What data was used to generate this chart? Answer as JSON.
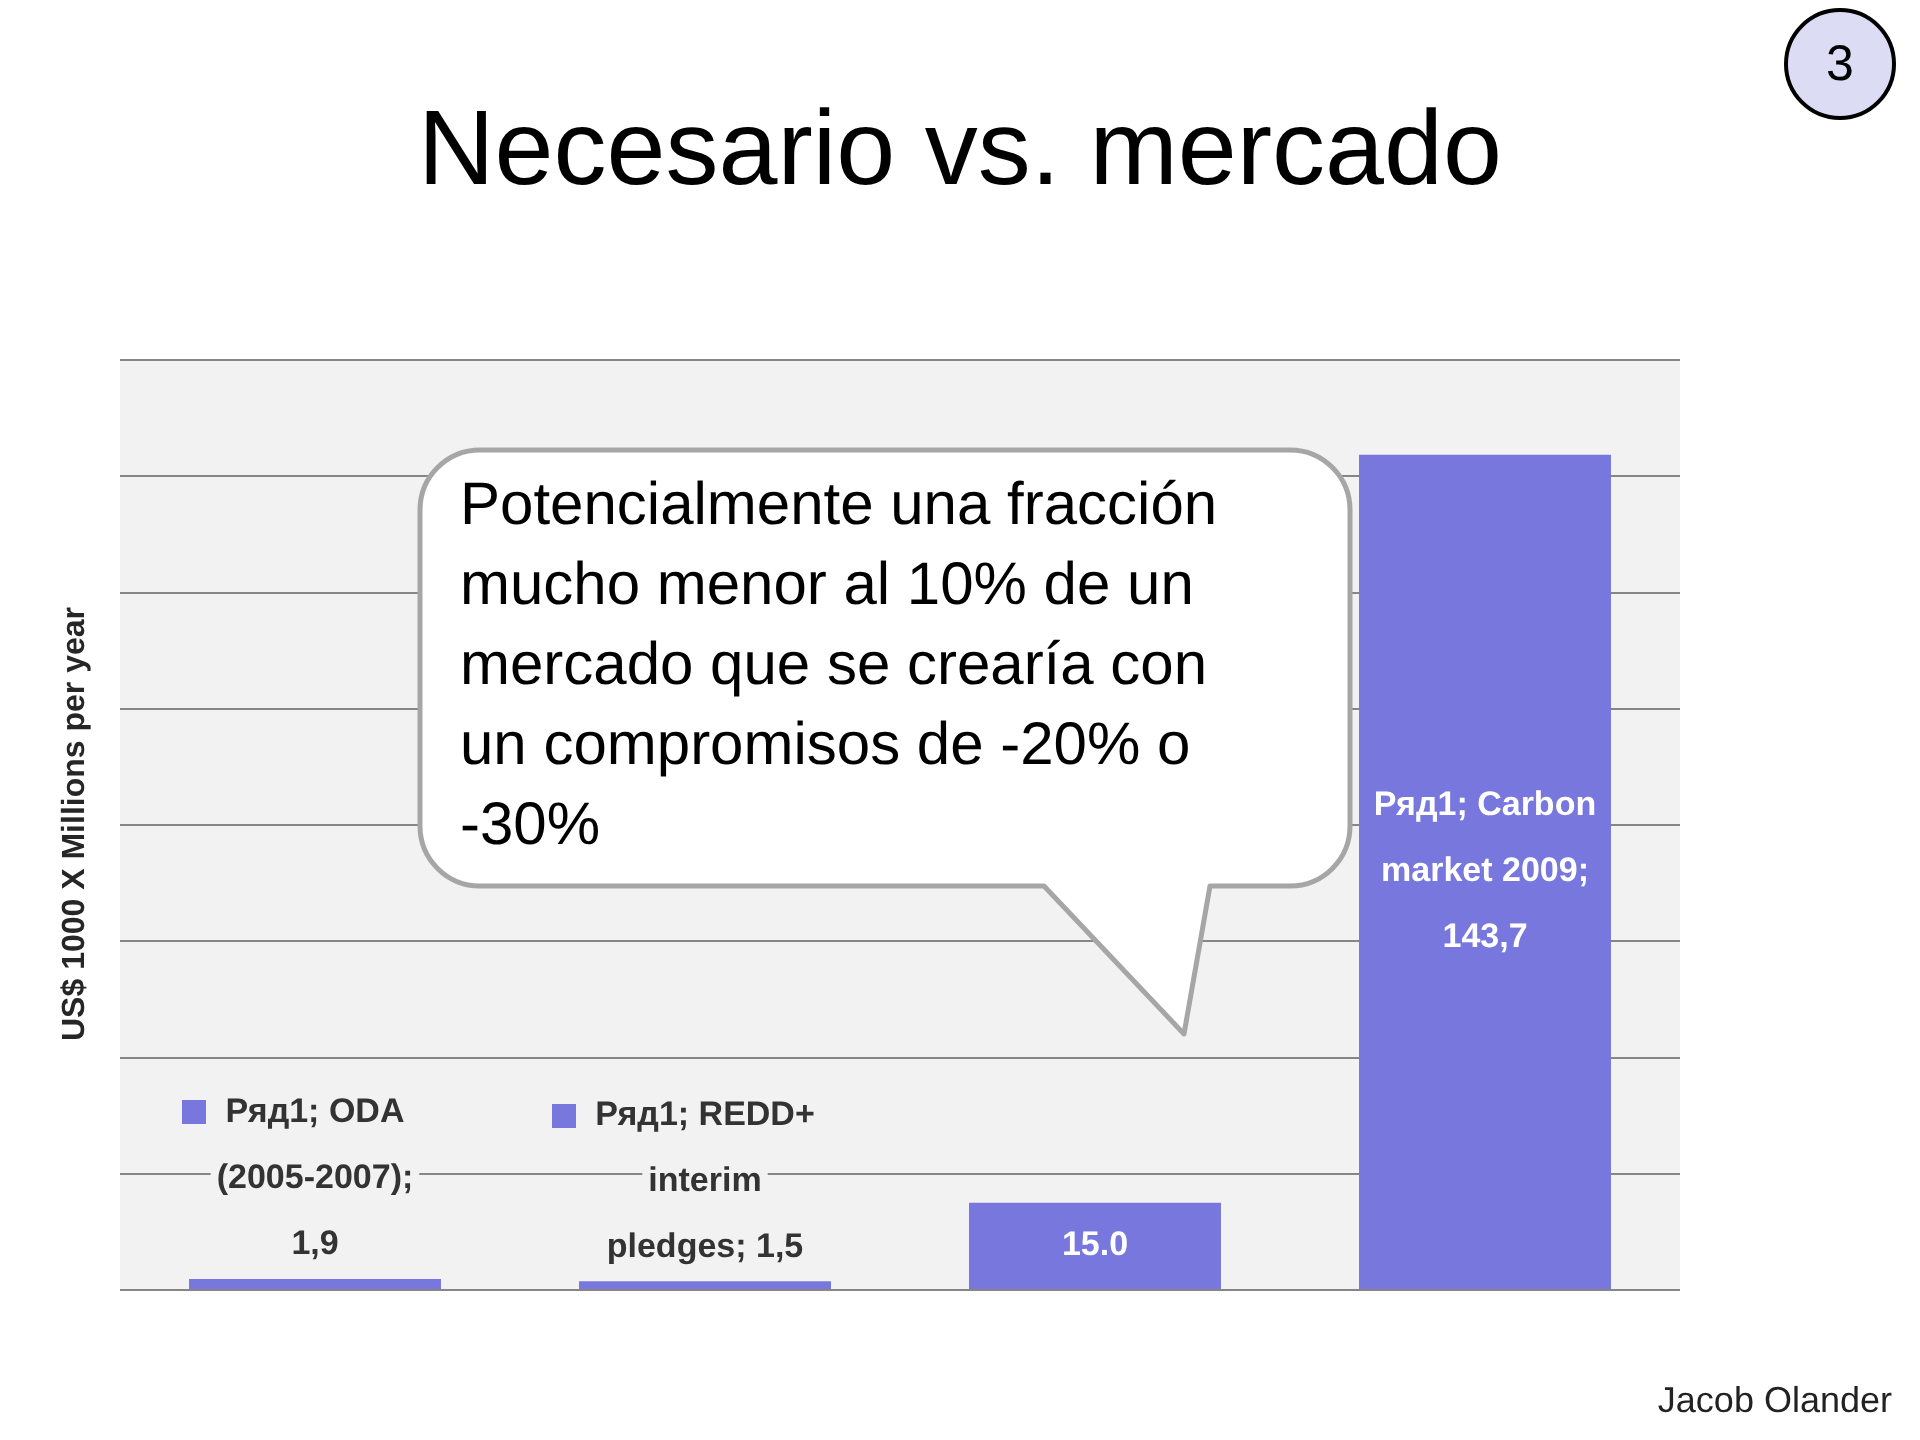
{
  "chart_data": {
    "type": "bar",
    "title": "Necesario vs. mercado",
    "ylabel": "US$ 1000 X Millions per year",
    "categories": [
      null,
      null,
      null,
      null
    ],
    "values": [
      1.9,
      1.5,
      15.0,
      143.7
    ],
    "color": "#7777dd",
    "value_labels": [
      "Ряд1; ODA (2005-2007); 1,9",
      "Ряд1; REDD+ interim pledges; 1,5",
      "15.0",
      "Ряд1; Carbon market 2009; 143,7"
    ],
    "ylim": [
      0,
      160
    ],
    "yticks": [
      {
        "value": 0,
        "label": null
      },
      {
        "value": 20,
        "label": null
      },
      {
        "value": 40,
        "label": null
      },
      {
        "value": 60,
        "label": null
      },
      {
        "value": 80,
        "label": null
      },
      {
        "value": 100,
        "label": null
      },
      {
        "value": 120,
        "label": null
      },
      {
        "value": 140,
        "label": null
      },
      {
        "value": 160,
        "label": null
      }
    ],
    "grid": "y",
    "tick_labels": false,
    "annotations": [
      "Potencialmente una fracción mucho menor al 10% de un mercado que se crearía con un compromisos de -20% o -30%",
      "Jacob Olander",
      "3"
    ]
  }
}
